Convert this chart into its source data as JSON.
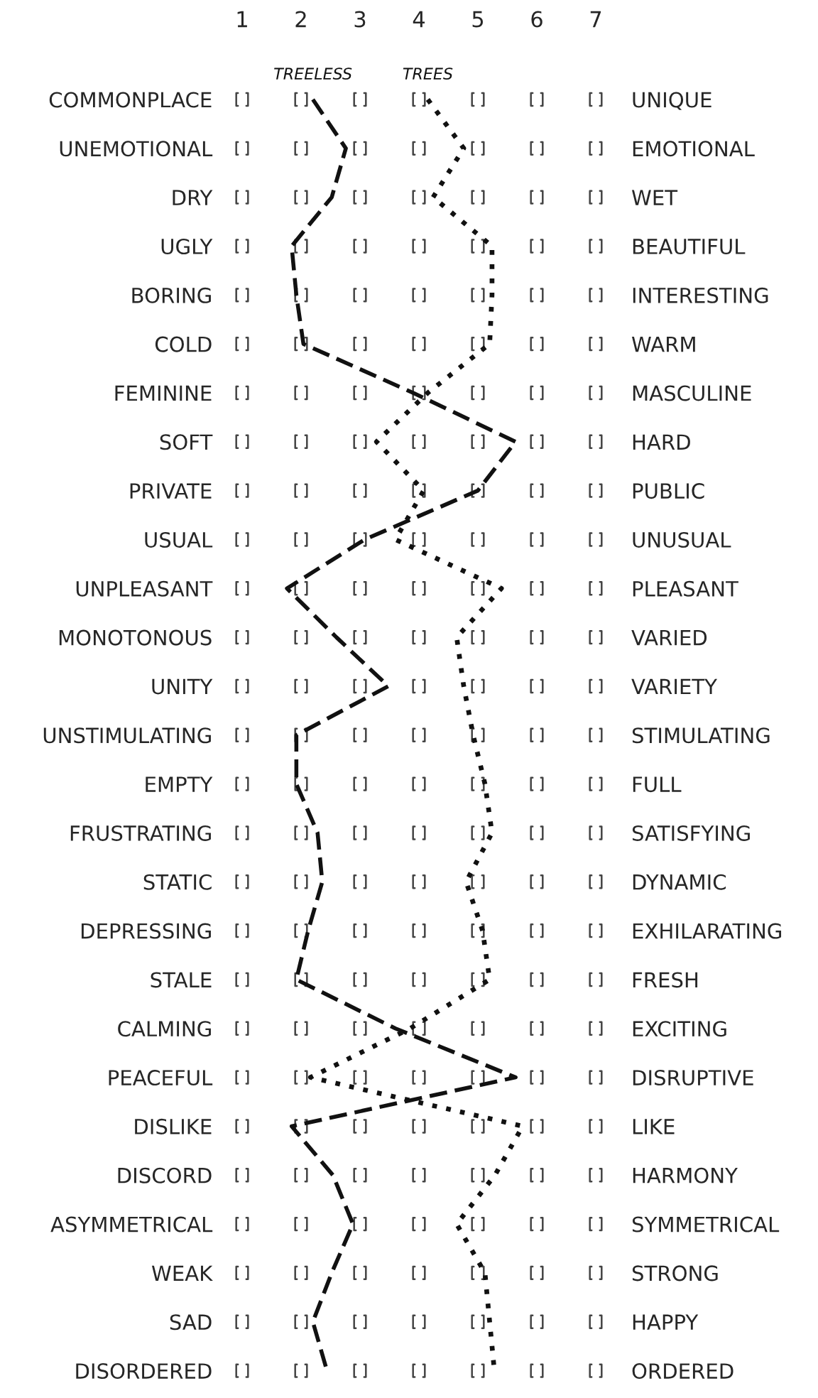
{
  "chart_data": {
    "type": "line",
    "orientation": "horizontal",
    "categories": [
      "COMMONPLACE",
      "UNEMOTIONAL",
      "DRY",
      "UGLY",
      "BORING",
      "COLD",
      "FEMININE",
      "SOFT",
      "PRIVATE",
      "USUAL",
      "UNPLEASANT",
      "MONOTONOUS",
      "UNITY",
      "UNSTIMULATING",
      "EMPTY",
      "FRUSTRATING",
      "STATIC",
      "DEPRESSING",
      "STALE",
      "CALMING",
      "PEACEFUL",
      "DISLIKE",
      "DISCORD",
      "ASYMMETRICAL",
      "WEAK",
      "SAD",
      "DISORDERED"
    ],
    "y2_categories": [
      "UNIQUE",
      "EMOTIONAL",
      "WET",
      "BEAUTIFUL",
      "INTERESTING",
      "WARM",
      "MASCULINE",
      "HARD",
      "PUBLIC",
      "UNUSUAL",
      "PLEASANT",
      "VARIED",
      "VARIETY",
      "STIMULATING",
      "FULL",
      "SATISFYING",
      "DYNAMIC",
      "EXHILARATING",
      "FRESH",
      "EXCITING",
      "DISRUPTIVE",
      "LIKE",
      "HARMONY",
      "SYMMETRICAL",
      "STRONG",
      "HAPPY",
      "ORDERED"
    ],
    "series": [
      {
        "name": "TREELESS",
        "color": "#111111",
        "line_style": "dashed",
        "values": [
          2.2,
          2.76,
          2.52,
          1.84,
          1.92,
          2.04,
          3.9,
          5.64,
          5.0,
          3.08,
          1.76,
          2.6,
          3.48,
          1.92,
          1.92,
          2.28,
          2.36,
          2.12,
          1.92,
          3.6,
          5.64,
          1.84,
          2.54,
          2.88,
          2.52,
          2.2,
          2.44
        ]
      },
      {
        "name": "TREES",
        "color": "#111111",
        "line_style": "dotted",
        "values": [
          4.15,
          4.76,
          4.24,
          5.24,
          5.24,
          5.2,
          4.15,
          3.28,
          4.08,
          3.6,
          5.4,
          4.64,
          4.76,
          4.92,
          5.12,
          5.24,
          4.8,
          5.08,
          5.2,
          3.85,
          2.16,
          5.76,
          5.29,
          4.64,
          5.12,
          5.2,
          5.28
        ]
      }
    ],
    "xlim": [
      1,
      7
    ],
    "xticks": [
      1,
      2,
      3,
      4,
      5,
      6,
      7
    ],
    "grid": false,
    "legend": false,
    "marker": "none"
  }
}
